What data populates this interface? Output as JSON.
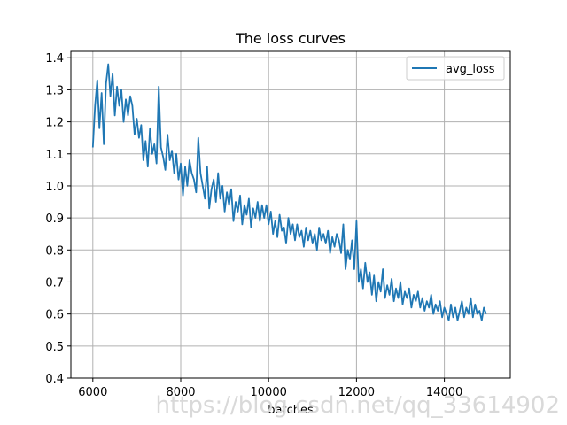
{
  "chart_data": {
    "type": "line",
    "title": "The loss curves",
    "xlabel": "batches",
    "ylabel": "",
    "xlim": [
      5500,
      15500
    ],
    "ylim": [
      0.4,
      1.42
    ],
    "xticks": [
      6000,
      8000,
      10000,
      12000,
      14000
    ],
    "xtick_labels": [
      "6000",
      "8000",
      "10000",
      "12000",
      "14000"
    ],
    "yticks": [
      0.4,
      0.5,
      0.6,
      0.7,
      0.8,
      0.9,
      1.0,
      1.1,
      1.2,
      1.3,
      1.4
    ],
    "ytick_labels": [
      "0.4",
      "0.5",
      "0.6",
      "0.7",
      "0.8",
      "0.9",
      "1.0",
      "1.1",
      "1.2",
      "1.3",
      "1.4"
    ],
    "grid": true,
    "legend_position": "top-right",
    "series": [
      {
        "name": "avg_loss",
        "color": "#1f77b4",
        "x": [
          6000,
          6050,
          6100,
          6150,
          6200,
          6250,
          6300,
          6350,
          6400,
          6450,
          6500,
          6550,
          6600,
          6650,
          6700,
          6750,
          6800,
          6850,
          6900,
          6950,
          7000,
          7050,
          7100,
          7150,
          7200,
          7250,
          7300,
          7350,
          7400,
          7450,
          7500,
          7550,
          7600,
          7650,
          7700,
          7750,
          7800,
          7850,
          7900,
          7950,
          8000,
          8050,
          8100,
          8150,
          8200,
          8250,
          8300,
          8350,
          8400,
          8450,
          8500,
          8550,
          8600,
          8650,
          8700,
          8750,
          8800,
          8850,
          8900,
          8950,
          9000,
          9050,
          9100,
          9150,
          9200,
          9250,
          9300,
          9350,
          9400,
          9450,
          9500,
          9550,
          9600,
          9650,
          9700,
          9750,
          9800,
          9850,
          9900,
          9950,
          10000,
          10050,
          10100,
          10150,
          10200,
          10250,
          10300,
          10350,
          10400,
          10450,
          10500,
          10550,
          10600,
          10650,
          10700,
          10750,
          10800,
          10850,
          10900,
          10950,
          11000,
          11050,
          11100,
          11150,
          11200,
          11250,
          11300,
          11350,
          11400,
          11450,
          11500,
          11550,
          11600,
          11650,
          11700,
          11750,
          11800,
          11850,
          11900,
          11950,
          12000,
          12050,
          12100,
          12150,
          12200,
          12250,
          12300,
          12350,
          12400,
          12450,
          12500,
          12550,
          12600,
          12650,
          12700,
          12750,
          12800,
          12850,
          12900,
          12950,
          13000,
          13050,
          13100,
          13150,
          13200,
          13250,
          13300,
          13350,
          13400,
          13450,
          13500,
          13550,
          13600,
          13650,
          13700,
          13750,
          13800,
          13850,
          13900,
          13950,
          14000,
          14050,
          14100,
          14150,
          14200,
          14250,
          14300,
          14350,
          14400,
          14450,
          14500,
          14550,
          14600,
          14650,
          14700,
          14750,
          14800,
          14850,
          14900,
          14950
        ],
        "values": [
          1.12,
          1.25,
          1.33,
          1.18,
          1.29,
          1.13,
          1.32,
          1.38,
          1.28,
          1.35,
          1.22,
          1.31,
          1.25,
          1.3,
          1.2,
          1.27,
          1.22,
          1.28,
          1.25,
          1.16,
          1.21,
          1.15,
          1.19,
          1.08,
          1.14,
          1.06,
          1.18,
          1.1,
          1.13,
          1.07,
          1.31,
          1.12,
          1.09,
          1.05,
          1.16,
          1.08,
          1.11,
          1.04,
          1.1,
          1.02,
          1.07,
          0.97,
          1.06,
          1.0,
          1.08,
          1.04,
          1.02,
          0.98,
          1.15,
          1.04,
          1.0,
          0.96,
          1.06,
          0.93,
          0.99,
          1.02,
          0.95,
          1.04,
          0.96,
          1.0,
          0.92,
          0.98,
          0.94,
          0.99,
          0.89,
          0.95,
          0.92,
          0.97,
          0.88,
          0.94,
          0.91,
          0.96,
          0.87,
          0.93,
          0.9,
          0.95,
          0.89,
          0.94,
          0.9,
          0.94,
          0.88,
          0.92,
          0.85,
          0.89,
          0.84,
          0.91,
          0.86,
          0.87,
          0.82,
          0.9,
          0.85,
          0.88,
          0.83,
          0.88,
          0.84,
          0.86,
          0.81,
          0.87,
          0.83,
          0.86,
          0.82,
          0.85,
          0.8,
          0.87,
          0.83,
          0.85,
          0.82,
          0.86,
          0.79,
          0.84,
          0.81,
          0.85,
          0.83,
          0.79,
          0.88,
          0.74,
          0.8,
          0.77,
          0.83,
          0.74,
          0.89,
          0.7,
          0.74,
          0.68,
          0.76,
          0.7,
          0.73,
          0.66,
          0.72,
          0.64,
          0.7,
          0.67,
          0.74,
          0.65,
          0.69,
          0.66,
          0.71,
          0.64,
          0.68,
          0.65,
          0.7,
          0.63,
          0.67,
          0.65,
          0.68,
          0.62,
          0.66,
          0.64,
          0.67,
          0.62,
          0.65,
          0.61,
          0.64,
          0.62,
          0.66,
          0.6,
          0.63,
          0.61,
          0.64,
          0.59,
          0.62,
          0.6,
          0.58,
          0.63,
          0.59,
          0.62,
          0.58,
          0.61,
          0.64,
          0.59,
          0.62,
          0.6,
          0.65,
          0.59,
          0.63,
          0.6,
          0.61,
          0.58,
          0.62,
          0.6
        ]
      }
    ]
  },
  "watermark": "https://blog.csdn.net/qq_33614902"
}
